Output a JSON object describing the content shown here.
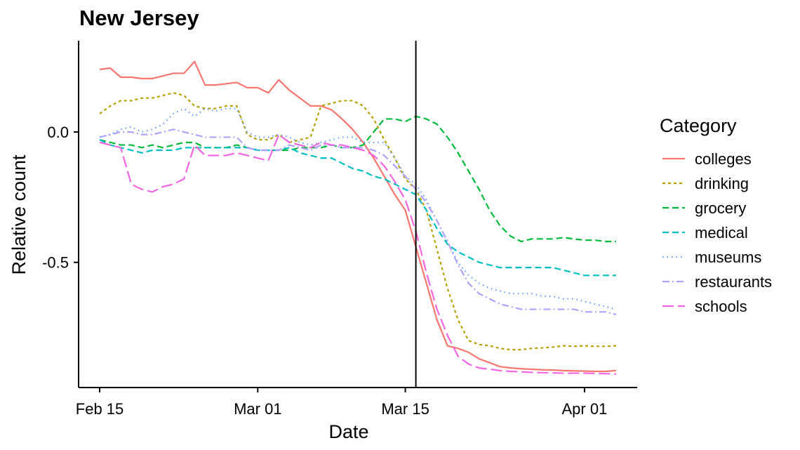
{
  "chart_data": {
    "type": "line",
    "title": "New Jersey",
    "xlabel": "Date",
    "ylabel": "Relative count",
    "x_ticks": [
      "Feb 15",
      "Mar 01",
      "Mar 15",
      "Apr 01"
    ],
    "y_ticks": [
      "0.0",
      "-0.5"
    ],
    "y_tick_values": [
      0.0,
      -0.5
    ],
    "xlim": [
      "2020-02-13",
      "2020-04-06"
    ],
    "ylim": [
      -0.98,
      0.35
    ],
    "vline": "2020-03-16",
    "grid": false,
    "legend": {
      "title": "Category",
      "position": "right"
    },
    "x": [
      "2020-02-15",
      "2020-02-16",
      "2020-02-17",
      "2020-02-18",
      "2020-02-19",
      "2020-02-20",
      "2020-02-21",
      "2020-02-22",
      "2020-02-23",
      "2020-02-24",
      "2020-02-25",
      "2020-02-26",
      "2020-02-27",
      "2020-02-28",
      "2020-02-29",
      "2020-03-01",
      "2020-03-02",
      "2020-03-03",
      "2020-03-04",
      "2020-03-05",
      "2020-03-06",
      "2020-03-07",
      "2020-03-08",
      "2020-03-09",
      "2020-03-10",
      "2020-03-11",
      "2020-03-12",
      "2020-03-13",
      "2020-03-14",
      "2020-03-15",
      "2020-03-16",
      "2020-03-17",
      "2020-03-18",
      "2020-03-19",
      "2020-03-20",
      "2020-03-21",
      "2020-03-22",
      "2020-03-23",
      "2020-03-24",
      "2020-03-25",
      "2020-03-26",
      "2020-03-27",
      "2020-03-28",
      "2020-03-29",
      "2020-03-30",
      "2020-03-31",
      "2020-04-01",
      "2020-04-02",
      "2020-04-03",
      "2020-04-04"
    ],
    "series": [
      {
        "name": "colleges",
        "color": "#F8766D",
        "dash": "",
        "values": [
          0.24,
          0.245,
          0.21,
          0.21,
          0.205,
          0.205,
          0.215,
          0.225,
          0.225,
          0.27,
          0.18,
          0.18,
          0.185,
          0.19,
          0.17,
          0.17,
          0.15,
          0.2,
          0.16,
          0.13,
          0.1,
          0.1,
          0.085,
          0.05,
          0.01,
          -0.04,
          -0.1,
          -0.17,
          -0.24,
          -0.3,
          -0.44,
          -0.58,
          -0.72,
          -0.82,
          -0.83,
          -0.845,
          -0.87,
          -0.885,
          -0.9,
          -0.905,
          -0.908,
          -0.91,
          -0.912,
          -0.913,
          -0.915,
          -0.916,
          -0.917,
          -0.918,
          -0.918,
          -0.915
        ]
      },
      {
        "name": "drinking",
        "color": "#B79F00",
        "dash": "4,4",
        "values": [
          0.07,
          0.1,
          0.12,
          0.12,
          0.13,
          0.13,
          0.14,
          0.15,
          0.14,
          0.1,
          0.09,
          0.09,
          0.1,
          0.1,
          -0.01,
          -0.03,
          -0.03,
          -0.01,
          -0.04,
          -0.03,
          -0.02,
          0.1,
          0.11,
          0.12,
          0.12,
          0.1,
          0.05,
          -0.03,
          -0.1,
          -0.18,
          -0.22,
          -0.3,
          -0.45,
          -0.6,
          -0.72,
          -0.8,
          -0.815,
          -0.82,
          -0.83,
          -0.835,
          -0.835,
          -0.83,
          -0.828,
          -0.825,
          -0.82,
          -0.822,
          -0.82,
          -0.822,
          -0.822,
          -0.82
        ]
      },
      {
        "name": "grocery",
        "color": "#00BA38",
        "dash": "9,5",
        "values": [
          -0.03,
          -0.04,
          -0.05,
          -0.05,
          -0.06,
          -0.05,
          -0.06,
          -0.05,
          -0.04,
          -0.04,
          -0.06,
          -0.06,
          -0.06,
          -0.05,
          -0.06,
          -0.07,
          -0.07,
          -0.07,
          -0.07,
          -0.06,
          -0.06,
          -0.06,
          -0.05,
          -0.06,
          -0.06,
          -0.05,
          0.0,
          0.05,
          0.05,
          0.04,
          0.06,
          0.05,
          0.03,
          -0.02,
          -0.08,
          -0.15,
          -0.22,
          -0.3,
          -0.36,
          -0.4,
          -0.42,
          -0.41,
          -0.41,
          -0.41,
          -0.405,
          -0.41,
          -0.415,
          -0.415,
          -0.42,
          -0.42
        ]
      },
      {
        "name": "medical",
        "color": "#00BFC4",
        "dash": "9,5",
        "values": [
          -0.03,
          -0.05,
          -0.06,
          -0.07,
          -0.08,
          -0.07,
          -0.07,
          -0.07,
          -0.06,
          -0.06,
          -0.06,
          -0.06,
          -0.06,
          -0.06,
          -0.06,
          -0.07,
          -0.07,
          -0.07,
          -0.06,
          -0.08,
          -0.09,
          -0.1,
          -0.1,
          -0.12,
          -0.14,
          -0.15,
          -0.17,
          -0.18,
          -0.2,
          -0.22,
          -0.24,
          -0.3,
          -0.37,
          -0.43,
          -0.46,
          -0.48,
          -0.5,
          -0.51,
          -0.52,
          -0.52,
          -0.52,
          -0.52,
          -0.52,
          -0.52,
          -0.53,
          -0.54,
          -0.55,
          -0.55,
          -0.55,
          -0.55
        ]
      },
      {
        "name": "museums",
        "color": "#619CFF",
        "dash": "1.5,5",
        "values": [
          -0.02,
          -0.01,
          0.01,
          0.02,
          0.0,
          0.01,
          0.03,
          0.07,
          0.09,
          0.06,
          0.09,
          0.08,
          0.09,
          0.09,
          0.0,
          -0.02,
          -0.02,
          -0.01,
          -0.02,
          -0.04,
          -0.05,
          -0.04,
          -0.03,
          -0.02,
          -0.02,
          -0.04,
          -0.04,
          -0.04,
          -0.1,
          -0.17,
          -0.2,
          -0.26,
          -0.34,
          -0.42,
          -0.5,
          -0.55,
          -0.58,
          -0.6,
          -0.61,
          -0.62,
          -0.62,
          -0.62,
          -0.63,
          -0.63,
          -0.64,
          -0.64,
          -0.65,
          -0.66,
          -0.67,
          -0.68
        ]
      },
      {
        "name": "restaurants",
        "color": "#B1A1FF",
        "dash": "10,4,2,4",
        "values": [
          -0.02,
          -0.01,
          0.0,
          0.0,
          -0.01,
          -0.01,
          0.0,
          0.01,
          0.0,
          -0.01,
          -0.02,
          -0.02,
          -0.02,
          -0.02,
          -0.06,
          -0.07,
          -0.07,
          -0.07,
          -0.05,
          -0.06,
          -0.07,
          -0.05,
          -0.05,
          -0.06,
          -0.06,
          -0.06,
          -0.07,
          -0.09,
          -0.13,
          -0.17,
          -0.22,
          -0.27,
          -0.34,
          -0.42,
          -0.51,
          -0.58,
          -0.62,
          -0.64,
          -0.66,
          -0.67,
          -0.68,
          -0.68,
          -0.68,
          -0.68,
          -0.68,
          -0.68,
          -0.69,
          -0.69,
          -0.69,
          -0.7
        ]
      },
      {
        "name": "schools",
        "color": "#F564E3",
        "dash": "16,6",
        "values": [
          -0.04,
          -0.05,
          -0.06,
          -0.2,
          -0.22,
          -0.23,
          -0.21,
          -0.2,
          -0.18,
          -0.05,
          -0.09,
          -0.09,
          -0.09,
          -0.08,
          -0.09,
          -0.1,
          -0.11,
          -0.01,
          -0.04,
          -0.05,
          -0.06,
          -0.04,
          -0.05,
          -0.05,
          -0.06,
          -0.07,
          -0.09,
          -0.13,
          -0.19,
          -0.26,
          -0.38,
          -0.54,
          -0.68,
          -0.78,
          -0.86,
          -0.89,
          -0.905,
          -0.91,
          -0.915,
          -0.918,
          -0.92,
          -0.922,
          -0.923,
          -0.924,
          -0.925,
          -0.925,
          -0.925,
          -0.926,
          -0.927,
          -0.928
        ]
      }
    ]
  }
}
